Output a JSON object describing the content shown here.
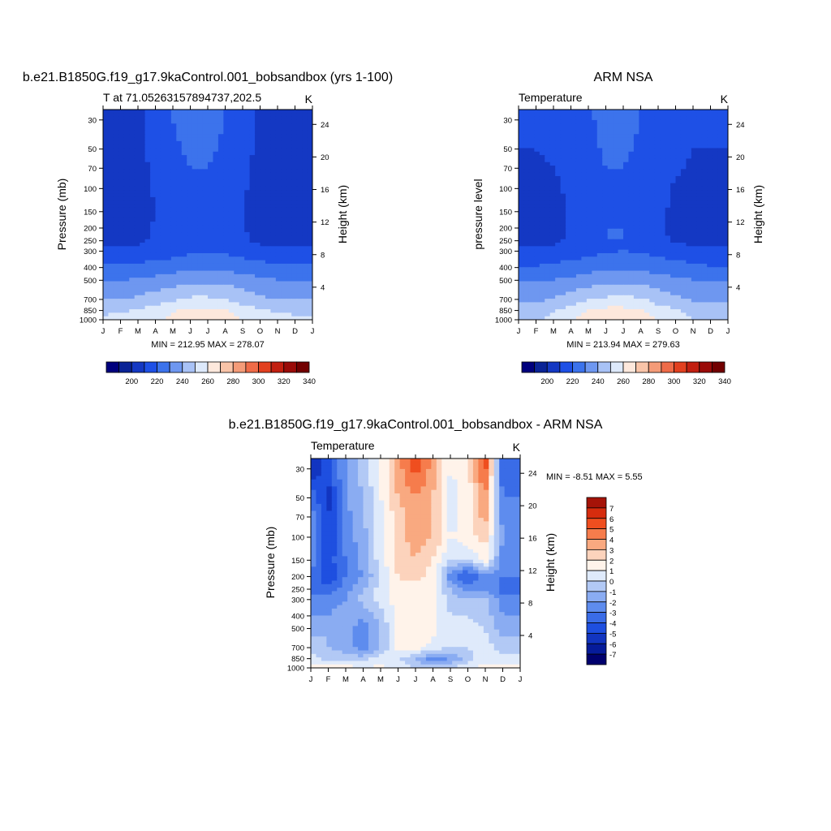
{
  "palette_temp": [
    "#00007d",
    "#0a2396",
    "#1438c3",
    "#1e50e6",
    "#3c73ec",
    "#6e97f0",
    "#a8c2f6",
    "#dde9fb",
    "#fde8dc",
    "#f9c4a8",
    "#f49b78",
    "#ef6b48",
    "#e2401f",
    "#c21f10",
    "#9a0b08",
    "#720000"
  ],
  "palette_diff": [
    "#720000",
    "#a51308",
    "#d62c0e",
    "#ef4e1f",
    "#f67c4c",
    "#f9a980",
    "#fcd3bc",
    "#fff3ea",
    "#dfeafb",
    "#b2c9f5",
    "#8aacf2",
    "#5e8cee",
    "#3a6ce7",
    "#1e4fe0",
    "#1235c0",
    "#061b9a",
    "#00006e"
  ],
  "months": [
    "J",
    "F",
    "M",
    "A",
    "M",
    "J",
    "J",
    "A",
    "S",
    "O",
    "N",
    "D",
    "J"
  ],
  "pressure_ticks": [
    "30",
    "50",
    "70",
    "100",
    "150",
    "200",
    "250",
    "300",
    "400",
    "500",
    "700",
    "850",
    "1000"
  ],
  "height_ticks": [
    "24",
    "20",
    "16",
    "12",
    "8",
    "4"
  ],
  "colorbar_labels_temp": [
    "200",
    "220",
    "240",
    "260",
    "280",
    "300",
    "320",
    "340"
  ],
  "colorbar_labels_diff": [
    "7",
    "6",
    "5",
    "4",
    "3",
    "2",
    "1",
    "0",
    "-1",
    "-2",
    "-3",
    "-4",
    "-5",
    "-6",
    "-7"
  ],
  "panels": {
    "left": {
      "title": "b.e21.B1850G.f19_g17.9kaControl.001_bobsandbox (yrs 1-100)",
      "left_string": "T at 71.05263157894737,202.5",
      "right_string": "K",
      "ylabel": "Pressure (mb)",
      "ylabel_right": "Height (km)",
      "minmax": "MIN = 212.95 MAX = 278.07"
    },
    "right": {
      "title": "ARM NSA",
      "left_string": "Temperature",
      "right_string": "K",
      "ylabel": "pressure level",
      "ylabel_right": "Height (km)",
      "minmax": "MIN = 213.94 MAX = 279.63"
    },
    "diff": {
      "title": "b.e21.B1850G.f19_g17.9kaControl.001_bobsandbox - ARM NSA",
      "left_string": "Temperature",
      "right_string": "K",
      "ylabel": "Pressure (mb)",
      "ylabel_right": "Height (km)",
      "minmax": "MIN =  -8.51 MAX =   5.55"
    }
  },
  "chart_data": [
    {
      "type": "heatmap",
      "title": "b.e21.B1850G.f19_g17.9kaControl.001_bobsandbox (yrs 1-100)",
      "subtitle": "T at 71.05263157894737,202.5",
      "units": "K",
      "xlabel": "",
      "x": [
        "J",
        "F",
        "M",
        "A",
        "M",
        "J",
        "J",
        "A",
        "S",
        "O",
        "N",
        "D",
        "J"
      ],
      "ylabel": "Pressure (mb)",
      "y": [
        1000,
        850,
        700,
        500,
        400,
        300,
        250,
        200,
        150,
        100,
        70,
        50,
        30
      ],
      "values": [
        [
          262,
          263,
          265,
          268,
          274,
          278,
          278,
          276,
          270,
          266,
          263,
          262,
          262
        ],
        [
          258,
          259,
          261,
          264,
          269,
          272,
          272,
          270,
          265,
          261,
          259,
          258,
          258
        ],
        [
          250,
          250,
          252,
          255,
          258,
          262,
          262,
          260,
          256,
          252,
          250,
          250,
          250
        ],
        [
          240,
          240,
          241,
          243,
          245,
          247,
          248,
          247,
          244,
          242,
          240,
          240,
          240
        ],
        [
          232,
          232,
          233,
          234,
          236,
          238,
          239,
          238,
          236,
          234,
          232,
          232,
          232
        ],
        [
          222,
          222,
          223,
          224,
          226,
          228,
          229,
          228,
          226,
          224,
          222,
          222,
          222
        ],
        [
          217,
          217,
          218,
          222,
          226,
          229,
          229,
          227,
          222,
          218,
          217,
          217,
          217
        ],
        [
          215,
          215,
          216,
          221,
          226,
          229,
          229,
          227,
          221,
          216,
          215,
          215,
          215
        ],
        [
          215,
          215,
          216,
          220,
          225,
          228,
          228,
          226,
          220,
          216,
          215,
          215,
          215
        ],
        [
          216,
          216,
          217,
          221,
          225,
          228,
          228,
          226,
          221,
          217,
          216,
          216,
          216
        ],
        [
          215,
          215,
          217,
          222,
          227,
          230,
          230,
          227,
          222,
          217,
          215,
          215,
          215
        ],
        [
          214,
          215,
          218,
          223,
          228,
          232,
          232,
          228,
          223,
          218,
          215,
          214,
          214
        ],
        [
          213,
          214,
          218,
          224,
          230,
          235,
          233,
          230,
          224,
          218,
          214,
          213,
          213
        ]
      ],
      "colorbar": {
        "min": 190,
        "max": 350,
        "step": 10
      },
      "minmax": "MIN = 212.95 MAX = 278.07"
    },
    {
      "type": "heatmap",
      "title": "ARM NSA",
      "subtitle": "Temperature",
      "units": "K",
      "xlabel": "",
      "x": [
        "J",
        "F",
        "M",
        "A",
        "M",
        "J",
        "J",
        "A",
        "S",
        "O",
        "N",
        "D",
        "J"
      ],
      "ylabel": "pressure level",
      "y": [
        1000,
        850,
        700,
        500,
        400,
        300,
        250,
        200,
        150,
        100,
        70,
        50,
        30
      ],
      "values": [
        [
          258,
          259,
          262,
          268,
          275,
          279,
          280,
          277,
          270,
          266,
          260,
          258,
          258
        ],
        [
          255,
          256,
          259,
          264,
          270,
          273,
          273,
          271,
          265,
          261,
          257,
          255,
          255
        ],
        [
          248,
          248,
          251,
          255,
          259,
          262,
          263,
          261,
          256,
          252,
          249,
          248,
          248
        ],
        [
          239,
          239,
          240,
          242,
          245,
          247,
          248,
          247,
          244,
          242,
          240,
          239,
          239
        ],
        [
          231,
          231,
          232,
          234,
          236,
          238,
          239,
          238,
          236,
          234,
          232,
          231,
          231
        ],
        [
          222,
          222,
          223,
          225,
          227,
          229,
          230,
          229,
          227,
          225,
          223,
          222,
          222
        ],
        [
          216,
          216,
          218,
          222,
          227,
          230,
          230,
          228,
          223,
          219,
          217,
          216,
          216
        ],
        [
          214,
          214,
          216,
          221,
          227,
          230,
          230,
          228,
          222,
          217,
          215,
          214,
          214
        ],
        [
          216,
          216,
          217,
          221,
          226,
          229,
          229,
          227,
          222,
          218,
          216,
          216,
          216
        ],
        [
          217,
          217,
          218,
          222,
          226,
          229,
          229,
          227,
          223,
          219,
          217,
          217,
          217
        ],
        [
          219,
          219,
          220,
          223,
          227,
          230,
          230,
          228,
          224,
          221,
          219,
          219,
          219
        ],
        [
          220,
          220,
          221,
          224,
          228,
          231,
          231,
          229,
          225,
          222,
          220,
          220,
          220
        ],
        [
          220,
          220,
          221,
          224,
          229,
          232,
          232,
          230,
          226,
          223,
          220,
          220,
          220
        ]
      ],
      "colorbar": {
        "min": 190,
        "max": 350,
        "step": 10
      },
      "minmax": "MIN = 213.94 MAX = 279.63"
    },
    {
      "type": "heatmap",
      "title": "b.e21.B1850G.f19_g17.9kaControl.001_bobsandbox - ARM NSA",
      "subtitle": "Temperature",
      "units": "K",
      "xlabel": "",
      "x": [
        "J",
        "F",
        "M",
        "A",
        "M",
        "J",
        "J",
        "A",
        "S",
        "O",
        "N",
        "D",
        "J"
      ],
      "ylabel": "Pressure (mb)",
      "y": [
        1000,
        850,
        700,
        500,
        400,
        300,
        250,
        200,
        150,
        100,
        70,
        50,
        30
      ],
      "values": [
        [
          0.5,
          0.5,
          1.2,
          -0.5,
          0.5,
          -0.5,
          -1.0,
          -1.5,
          -1.0,
          -0.5,
          0.5,
          0.5,
          0.5
        ],
        [
          -0.5,
          -1.5,
          -1.5,
          -1.5,
          -0.5,
          -1.0,
          -2.0,
          -3.5,
          -3.0,
          -1.5,
          -0.5,
          -0.5,
          -0.5
        ],
        [
          -1.5,
          -2.0,
          -2.5,
          -3.5,
          -2.0,
          0.5,
          0.5,
          -0.5,
          -1.0,
          -1.0,
          -0.5,
          -1.5,
          -1.5
        ],
        [
          -2.5,
          -2.0,
          -2.5,
          -3.5,
          -2.0,
          0.5,
          1.0,
          0.5,
          -1.0,
          -0.5,
          -1.0,
          -2.5,
          -2.5
        ],
        [
          -3.0,
          -3.0,
          -2.5,
          -3.0,
          -1.5,
          0.5,
          1.0,
          0.5,
          -1.0,
          -1.0,
          -1.5,
          -3.0,
          -3.0
        ],
        [
          -3.5,
          -3.5,
          -3.0,
          -1.5,
          -0.5,
          0.5,
          0.5,
          0.5,
          -1.5,
          -2.0,
          -1.5,
          -3.5,
          -3.5
        ],
        [
          -4.5,
          -4.5,
          -3.5,
          -2.0,
          -0.5,
          0.5,
          0.5,
          0.5,
          -2.0,
          -3.5,
          -3.0,
          -4.5,
          -4.5
        ],
        [
          -4.0,
          -6.0,
          -4.0,
          -3.0,
          -1.0,
          1.0,
          1.5,
          0.5,
          -3.5,
          -5.5,
          -3.5,
          -4.0,
          -4.0
        ],
        [
          -3.5,
          -5.5,
          -4.0,
          -2.5,
          -0.5,
          1.5,
          2.0,
          1.0,
          -1.0,
          -1.0,
          0.5,
          -3.5,
          -3.5
        ],
        [
          -3.0,
          -6.0,
          -3.5,
          -2.5,
          -0.5,
          1.5,
          2.5,
          2.0,
          0.0,
          0.5,
          1.5,
          -3.0,
          -3.0
        ],
        [
          -3.5,
          -6.0,
          -3.5,
          -2.0,
          -0.5,
          1.5,
          2.5,
          2.0,
          -0.5,
          0.5,
          2.5,
          -3.5,
          -3.5
        ],
        [
          -4.0,
          -6.5,
          -3.0,
          -2.0,
          0.0,
          2.0,
          3.0,
          2.0,
          -0.5,
          0.5,
          3.0,
          -4.0,
          -4.0
        ],
        [
          -7.0,
          -5.5,
          -3.0,
          -1.5,
          0.0,
          2.5,
          4.5,
          2.5,
          0.0,
          0.5,
          4.5,
          -5.0,
          -5.0
        ]
      ],
      "colorbar": {
        "min": -8,
        "max": 8,
        "step": 1
      },
      "minmax": "MIN =  -8.51 MAX =   5.55"
    }
  ]
}
